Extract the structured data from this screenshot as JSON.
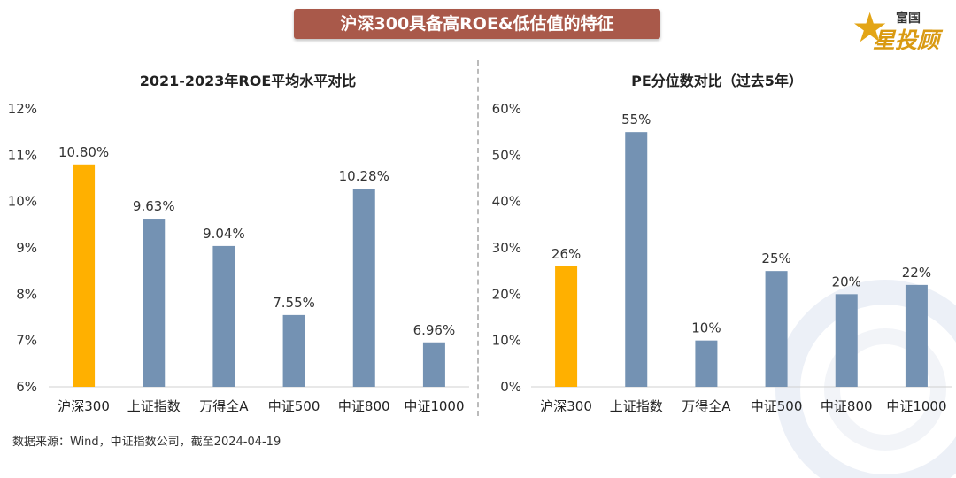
{
  "header": {
    "title": "沪深300具备高ROE&低估值的特征"
  },
  "logo": {
    "small_text": "富国",
    "big_text": "星投顾"
  },
  "footer": {
    "source": "数据来源：Wind，中证指数公司，截至2024-04-19"
  },
  "colors": {
    "highlight": "#ffb000",
    "bar": "#7492b3",
    "banner": "#a9594a"
  },
  "chart_data": [
    {
      "type": "bar",
      "title": "2021-2023年ROE平均水平对比",
      "categories": [
        "沪深300",
        "上证指数",
        "万得全A",
        "中证500",
        "中证800",
        "中证1000"
      ],
      "values": [
        10.8,
        9.63,
        9.04,
        7.55,
        10.28,
        6.96
      ],
      "data_labels": [
        "10.80%",
        "9.63%",
        "9.04%",
        "7.55%",
        "10.28%",
        "6.96%"
      ],
      "yticks": [
        "6%",
        "7%",
        "8%",
        "9%",
        "10%",
        "11%",
        "12%"
      ],
      "ylim": [
        6,
        12
      ],
      "highlight_index": 0,
      "grid": false,
      "xlabel": "",
      "ylabel": ""
    },
    {
      "type": "bar",
      "title": "PE分位数对比（过去5年）",
      "categories": [
        "沪深300",
        "上证指数",
        "万得全A",
        "中证500",
        "中证800",
        "中证1000"
      ],
      "values": [
        26,
        55,
        10,
        25,
        20,
        22
      ],
      "data_labels": [
        "26%",
        "55%",
        "10%",
        "25%",
        "20%",
        "22%"
      ],
      "yticks": [
        "0%",
        "10%",
        "20%",
        "30%",
        "40%",
        "50%",
        "60%"
      ],
      "ylim": [
        0,
        60
      ],
      "highlight_index": 0,
      "grid": false,
      "xlabel": "",
      "ylabel": ""
    }
  ]
}
